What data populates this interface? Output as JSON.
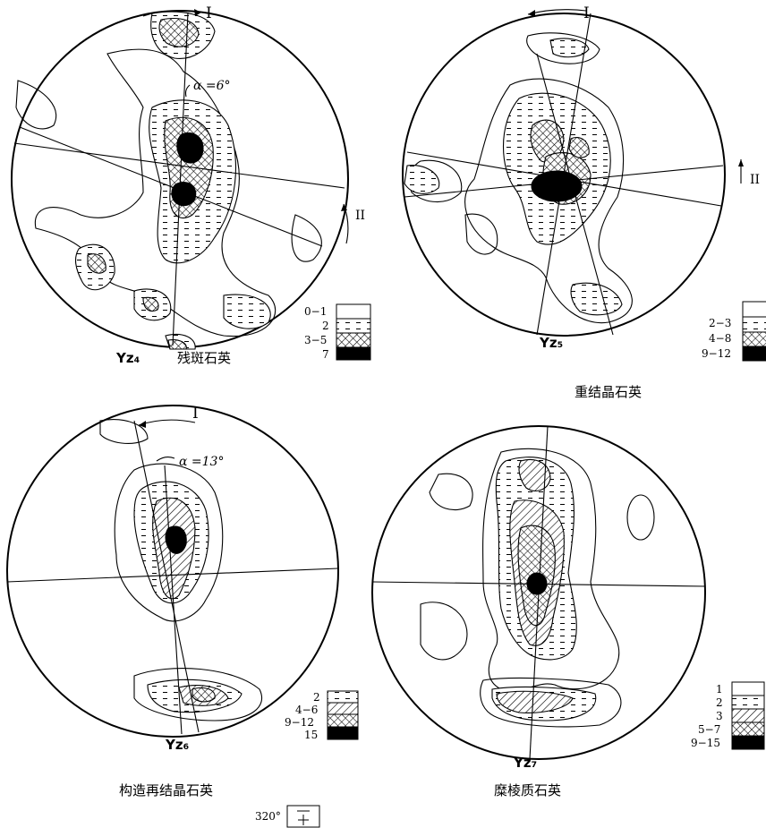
{
  "diagrams": [
    {
      "sample": "Yz₄",
      "caption": "残斑石英",
      "axis_top": "I",
      "axis_side": "II",
      "angle": "α =6°",
      "legend": [
        "0−1",
        "2",
        "3−5",
        "7"
      ]
    },
    {
      "sample": "Yz₅",
      "caption": "重结晶石英",
      "axis_top": "I",
      "axis_side": "II",
      "legend": [
        "2−3",
        "4−8",
        "9−12"
      ]
    },
    {
      "sample": "Yz₆",
      "caption": "构造再结晶石英",
      "axis_top": "I",
      "angle": "α =13°",
      "legend": [
        "2",
        "4−6",
        "9−12",
        "15"
      ]
    },
    {
      "sample": "Yz₇",
      "caption": "糜棱质石英",
      "legend": [
        "1",
        "2",
        "3",
        "5−7",
        "9−15"
      ]
    }
  ],
  "orientation_label": "320°"
}
